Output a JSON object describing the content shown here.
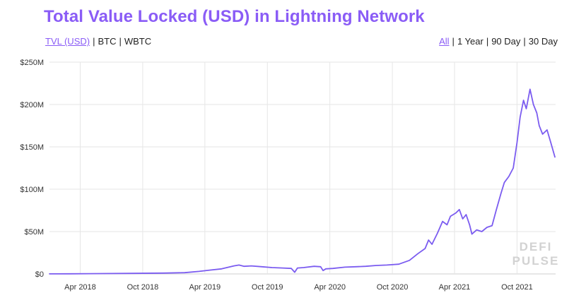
{
  "chart_data": {
    "type": "line",
    "title": "Total Value Locked (USD) in Lightning Network",
    "xlabel": "",
    "ylabel": "",
    "ylim": [
      0,
      250
    ],
    "yunit": "$M",
    "y_ticks": [
      {
        "value": 0,
        "label": "$0"
      },
      {
        "value": 50,
        "label": "$50M"
      },
      {
        "value": 100,
        "label": "$100M"
      },
      {
        "value": 150,
        "label": "$150M"
      },
      {
        "value": 200,
        "label": "$200M"
      },
      {
        "value": 250,
        "label": "$250M"
      }
    ],
    "xlim": [
      "2018-01-01",
      "2022-01-22"
    ],
    "x_ticks": [
      {
        "date": "2018-04-01",
        "label": "Apr 2018"
      },
      {
        "date": "2018-10-01",
        "label": "Oct 2018"
      },
      {
        "date": "2019-04-01",
        "label": "Apr 2019"
      },
      {
        "date": "2019-10-01",
        "label": "Oct 2019"
      },
      {
        "date": "2020-04-01",
        "label": "Apr 2020"
      },
      {
        "date": "2020-10-01",
        "label": "Oct 2020"
      },
      {
        "date": "2021-04-01",
        "label": "Apr 2021"
      },
      {
        "date": "2021-10-01",
        "label": "Oct 2021"
      }
    ],
    "grid": true,
    "line_color": "#7b5cf0",
    "series": [
      {
        "points": [
          [
            "2018-01-01",
            0.1
          ],
          [
            "2018-03-01",
            0.2
          ],
          [
            "2018-06-01",
            0.4
          ],
          [
            "2018-09-01",
            0.7
          ],
          [
            "2018-12-01",
            1.0
          ],
          [
            "2019-02-01",
            1.5
          ],
          [
            "2019-03-15",
            3.0
          ],
          [
            "2019-04-15",
            4.5
          ],
          [
            "2019-05-20",
            6.0
          ],
          [
            "2019-06-25",
            9.5
          ],
          [
            "2019-07-10",
            10.5
          ],
          [
            "2019-07-25",
            9.0
          ],
          [
            "2019-08-15",
            9.5
          ],
          [
            "2019-09-15",
            8.5
          ],
          [
            "2019-10-15",
            7.5
          ],
          [
            "2019-11-15",
            7.0
          ],
          [
            "2019-12-10",
            6.5
          ],
          [
            "2019-12-20",
            2.0
          ],
          [
            "2019-12-28",
            7.0
          ],
          [
            "2020-01-15",
            7.5
          ],
          [
            "2020-02-15",
            9.0
          ],
          [
            "2020-03-05",
            8.5
          ],
          [
            "2020-03-12",
            4.0
          ],
          [
            "2020-03-20",
            6.0
          ],
          [
            "2020-04-10",
            6.5
          ],
          [
            "2020-05-15",
            8.0
          ],
          [
            "2020-06-15",
            8.5
          ],
          [
            "2020-07-15",
            9.0
          ],
          [
            "2020-08-15",
            10.0
          ],
          [
            "2020-09-15",
            10.5
          ],
          [
            "2020-10-20",
            11.5
          ],
          [
            "2020-11-20",
            16.0
          ],
          [
            "2020-12-15",
            24.0
          ],
          [
            "2021-01-05",
            30.0
          ],
          [
            "2021-01-15",
            40.0
          ],
          [
            "2021-01-25",
            35.0
          ],
          [
            "2021-02-10",
            48.0
          ],
          [
            "2021-02-25",
            62.0
          ],
          [
            "2021-03-10",
            58.0
          ],
          [
            "2021-03-20",
            68.0
          ],
          [
            "2021-04-05",
            72.0
          ],
          [
            "2021-04-15",
            76.0
          ],
          [
            "2021-04-25",
            65.0
          ],
          [
            "2021-05-05",
            70.0
          ],
          [
            "2021-05-15",
            58.0
          ],
          [
            "2021-05-22",
            47.0
          ],
          [
            "2021-06-05",
            52.0
          ],
          [
            "2021-06-20",
            50.0
          ],
          [
            "2021-07-05",
            55.0
          ],
          [
            "2021-07-20",
            57.0
          ],
          [
            "2021-08-01",
            75.0
          ],
          [
            "2021-08-15",
            95.0
          ],
          [
            "2021-08-25",
            108.0
          ],
          [
            "2021-09-07",
            115.0
          ],
          [
            "2021-09-20",
            125.0
          ],
          [
            "2021-10-01",
            155.0
          ],
          [
            "2021-10-10",
            185.0
          ],
          [
            "2021-10-20",
            205.0
          ],
          [
            "2021-10-28",
            195.0
          ],
          [
            "2021-11-08",
            218.0
          ],
          [
            "2021-11-18",
            200.0
          ],
          [
            "2021-11-28",
            190.0
          ],
          [
            "2021-12-05",
            175.0
          ],
          [
            "2021-12-15",
            165.0
          ],
          [
            "2021-12-28",
            170.0
          ],
          [
            "2022-01-08",
            155.0
          ],
          [
            "2022-01-20",
            138.0
          ]
        ]
      }
    ]
  },
  "toggles_left": [
    {
      "label": "TVL (USD)",
      "active": true
    },
    {
      "label": "BTC",
      "active": false
    },
    {
      "label": "WBTC",
      "active": false
    }
  ],
  "toggles_right": [
    {
      "label": "All",
      "active": true
    },
    {
      "label": "1 Year",
      "active": false
    },
    {
      "label": "90 Day",
      "active": false
    },
    {
      "label": "30 Day",
      "active": false
    }
  ],
  "watermark": [
    "DEFI",
    "PULSE"
  ],
  "colors": {
    "accent": "#8a5cf6",
    "grid": "#e6e6e6"
  }
}
